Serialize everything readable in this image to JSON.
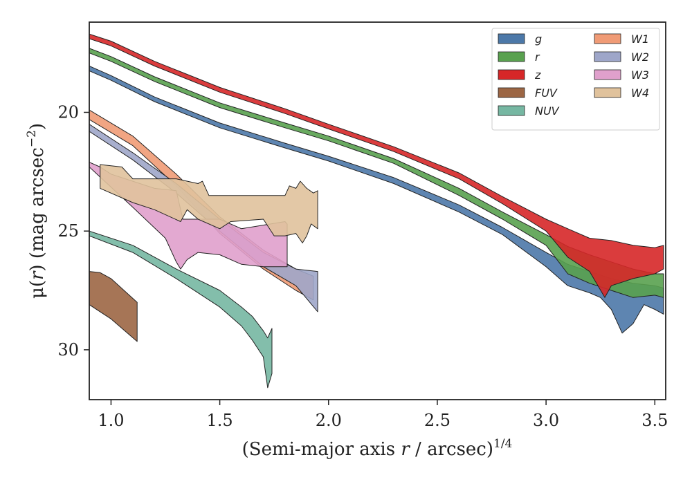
{
  "chart_data": {
    "type": "area",
    "xlabel": {
      "pre": "(Semi-major axis ",
      "var": "r",
      "mid": " / arcsec)",
      "sup": "1/4"
    },
    "ylabel": {
      "pre": "μ(",
      "var": "r",
      "mid": ") (mag arcsec",
      "sup": "−2",
      "post": ")"
    },
    "xlim": [
      0.9,
      3.55
    ],
    "ylim": [
      32.1,
      16.2
    ],
    "y_inverted": true,
    "xticks": [
      1.0,
      1.5,
      2.0,
      2.5,
      3.0,
      3.5
    ],
    "xtick_labels": [
      "1.0",
      "1.5",
      "2.0",
      "2.5",
      "3.0",
      "3.5"
    ],
    "yticks": [
      20,
      25,
      30
    ],
    "ytick_labels": [
      "20",
      "25",
      "30"
    ],
    "grid": false,
    "legend_position": "top-right",
    "legend_columns": 2,
    "series": [
      {
        "name": "g",
        "color": "#4c78a8",
        "upper": [
          [
            0.9,
            18.05
          ],
          [
            1.0,
            18.45
          ],
          [
            1.2,
            19.35
          ],
          [
            1.5,
            20.45
          ],
          [
            1.8,
            21.3
          ],
          [
            2.0,
            21.85
          ],
          [
            2.3,
            22.75
          ],
          [
            2.6,
            23.9
          ],
          [
            2.8,
            24.85
          ],
          [
            3.0,
            25.9
          ],
          [
            3.1,
            26.4
          ],
          [
            3.2,
            26.7
          ],
          [
            3.3,
            27.0
          ],
          [
            3.4,
            27.2
          ],
          [
            3.5,
            27.3
          ],
          [
            3.54,
            27.4
          ]
        ],
        "lower": [
          [
            3.54,
            28.5
          ],
          [
            3.5,
            28.3
          ],
          [
            3.45,
            28.1
          ],
          [
            3.4,
            28.9
          ],
          [
            3.35,
            29.3
          ],
          [
            3.3,
            28.3
          ],
          [
            3.25,
            27.8
          ],
          [
            3.2,
            27.6
          ],
          [
            3.1,
            27.3
          ],
          [
            3.0,
            26.5
          ],
          [
            2.8,
            25.15
          ],
          [
            2.6,
            24.2
          ],
          [
            2.3,
            23.0
          ],
          [
            2.0,
            22.05
          ],
          [
            1.8,
            21.5
          ],
          [
            1.5,
            20.65
          ],
          [
            1.2,
            19.55
          ],
          [
            1.0,
            18.65
          ],
          [
            0.9,
            18.25
          ]
        ]
      },
      {
        "name": "r",
        "color": "#59a14f",
        "upper": [
          [
            0.9,
            17.3
          ],
          [
            1.0,
            17.65
          ],
          [
            1.2,
            18.5
          ],
          [
            1.5,
            19.6
          ],
          [
            1.8,
            20.45
          ],
          [
            2.0,
            21.0
          ],
          [
            2.3,
            21.95
          ],
          [
            2.6,
            23.2
          ],
          [
            2.8,
            24.2
          ],
          [
            3.0,
            25.15
          ],
          [
            3.1,
            25.65
          ],
          [
            3.2,
            26.0
          ],
          [
            3.3,
            26.3
          ],
          [
            3.4,
            26.6
          ],
          [
            3.5,
            26.8
          ],
          [
            3.54,
            26.8
          ]
        ],
        "lower": [
          [
            3.54,
            27.8
          ],
          [
            3.5,
            27.7
          ],
          [
            3.4,
            27.8
          ],
          [
            3.3,
            27.5
          ],
          [
            3.2,
            27.2
          ],
          [
            3.1,
            26.8
          ],
          [
            3.0,
            25.6
          ],
          [
            2.8,
            24.5
          ],
          [
            2.6,
            23.5
          ],
          [
            2.3,
            22.15
          ],
          [
            2.0,
            21.2
          ],
          [
            1.8,
            20.65
          ],
          [
            1.5,
            19.8
          ],
          [
            1.2,
            18.7
          ],
          [
            1.0,
            17.85
          ],
          [
            0.9,
            17.5
          ]
        ]
      },
      {
        "name": "z",
        "color": "#d62728",
        "upper": [
          [
            0.9,
            16.7
          ],
          [
            1.0,
            17.0
          ],
          [
            1.2,
            17.85
          ],
          [
            1.5,
            18.95
          ],
          [
            1.8,
            19.85
          ],
          [
            2.0,
            20.5
          ],
          [
            2.3,
            21.45
          ],
          [
            2.6,
            22.55
          ],
          [
            2.8,
            23.55
          ],
          [
            3.0,
            24.5
          ],
          [
            3.1,
            24.9
          ],
          [
            3.2,
            25.3
          ],
          [
            3.3,
            25.4
          ],
          [
            3.4,
            25.6
          ],
          [
            3.5,
            25.7
          ],
          [
            3.54,
            25.6
          ]
        ],
        "lower": [
          [
            3.54,
            26.6
          ],
          [
            3.5,
            26.8
          ],
          [
            3.4,
            27.0
          ],
          [
            3.3,
            27.3
          ],
          [
            3.27,
            27.8
          ],
          [
            3.2,
            26.7
          ],
          [
            3.1,
            26.1
          ],
          [
            3.0,
            25.0
          ],
          [
            2.8,
            23.85
          ],
          [
            2.6,
            22.8
          ],
          [
            2.3,
            21.65
          ],
          [
            2.0,
            20.7
          ],
          [
            1.8,
            20.05
          ],
          [
            1.5,
            19.15
          ],
          [
            1.2,
            18.05
          ],
          [
            1.0,
            17.2
          ],
          [
            0.9,
            16.9
          ]
        ]
      },
      {
        "name": "FUV",
        "color": "#9c6644",
        "upper": [
          [
            0.9,
            26.7
          ],
          [
            0.95,
            26.75
          ],
          [
            1.0,
            27.0
          ],
          [
            1.12,
            28.0
          ]
        ],
        "lower": [
          [
            1.12,
            29.65
          ],
          [
            1.0,
            28.7
          ],
          [
            0.95,
            28.4
          ],
          [
            0.9,
            28.1
          ]
        ]
      },
      {
        "name": "NUV",
        "color": "#76b7a2",
        "upper": [
          [
            0.9,
            25.0
          ],
          [
            1.1,
            25.6
          ],
          [
            1.3,
            26.6
          ],
          [
            1.5,
            27.5
          ],
          [
            1.6,
            28.2
          ],
          [
            1.65,
            28.6
          ],
          [
            1.7,
            29.2
          ],
          [
            1.72,
            29.5
          ],
          [
            1.74,
            29.1
          ]
        ],
        "lower": [
          [
            1.74,
            31.0
          ],
          [
            1.72,
            31.6
          ],
          [
            1.7,
            30.3
          ],
          [
            1.65,
            29.6
          ],
          [
            1.6,
            29.0
          ],
          [
            1.5,
            28.2
          ],
          [
            1.3,
            27.0
          ],
          [
            1.1,
            25.9
          ],
          [
            0.9,
            25.2
          ]
        ]
      },
      {
        "name": "W1",
        "color": "#f09b76",
        "upper": [
          [
            0.9,
            19.9
          ],
          [
            1.1,
            21.0
          ],
          [
            1.3,
            22.6
          ],
          [
            1.5,
            24.4
          ],
          [
            1.7,
            25.8
          ],
          [
            1.85,
            26.6
          ],
          [
            1.93,
            26.9
          ]
        ],
        "lower": [
          [
            1.93,
            27.9
          ],
          [
            1.85,
            27.5
          ],
          [
            1.7,
            26.6
          ],
          [
            1.5,
            25.1
          ],
          [
            1.3,
            23.1
          ],
          [
            1.1,
            21.4
          ],
          [
            0.9,
            20.3
          ]
        ]
      },
      {
        "name": "W2",
        "color": "#9ea6c9",
        "upper": [
          [
            0.9,
            20.5
          ],
          [
            1.1,
            21.7
          ],
          [
            1.3,
            23.0
          ],
          [
            1.5,
            24.5
          ],
          [
            1.7,
            25.9
          ],
          [
            1.85,
            26.6
          ],
          [
            1.95,
            26.7
          ]
        ],
        "lower": [
          [
            1.95,
            28.4
          ],
          [
            1.85,
            27.3
          ],
          [
            1.7,
            26.5
          ],
          [
            1.5,
            25.0
          ],
          [
            1.3,
            23.4
          ],
          [
            1.1,
            22.0
          ],
          [
            0.9,
            20.8
          ]
        ]
      },
      {
        "name": "W3",
        "color": "#e0a0cc",
        "upper": [
          [
            0.9,
            22.1
          ],
          [
            0.95,
            22.3
          ],
          [
            1.0,
            22.6
          ],
          [
            1.2,
            23.2
          ],
          [
            1.3,
            23.3
          ],
          [
            1.33,
            24.5
          ],
          [
            1.5,
            24.5
          ],
          [
            1.6,
            24.9
          ],
          [
            1.8,
            24.6
          ],
          [
            1.81,
            24.7
          ]
        ],
        "lower": [
          [
            1.81,
            26.5
          ],
          [
            1.7,
            26.5
          ],
          [
            1.6,
            26.4
          ],
          [
            1.5,
            26.0
          ],
          [
            1.4,
            25.9
          ],
          [
            1.35,
            26.2
          ],
          [
            1.32,
            26.6
          ],
          [
            1.3,
            26.3
          ],
          [
            1.25,
            25.3
          ],
          [
            1.1,
            24.0
          ],
          [
            0.9,
            22.3
          ]
        ]
      },
      {
        "name": "W4",
        "color": "#e0c29c",
        "upper": [
          [
            0.95,
            22.2
          ],
          [
            1.05,
            22.3
          ],
          [
            1.1,
            22.8
          ],
          [
            1.3,
            22.8
          ],
          [
            1.4,
            23.0
          ],
          [
            1.42,
            22.9
          ],
          [
            1.45,
            23.5
          ],
          [
            1.6,
            23.5
          ],
          [
            1.8,
            23.5
          ],
          [
            1.82,
            23.1
          ],
          [
            1.85,
            23.2
          ],
          [
            1.87,
            22.9
          ],
          [
            1.9,
            23.2
          ],
          [
            1.93,
            23.4
          ],
          [
            1.95,
            23.3
          ]
        ],
        "lower": [
          [
            1.95,
            24.9
          ],
          [
            1.92,
            24.7
          ],
          [
            1.9,
            25.2
          ],
          [
            1.88,
            25.5
          ],
          [
            1.85,
            25.1
          ],
          [
            1.8,
            25.2
          ],
          [
            1.75,
            25.2
          ],
          [
            1.7,
            24.5
          ],
          [
            1.55,
            24.6
          ],
          [
            1.5,
            24.9
          ],
          [
            1.4,
            24.5
          ],
          [
            1.35,
            24.1
          ],
          [
            1.32,
            24.6
          ],
          [
            1.2,
            24.1
          ],
          [
            1.1,
            23.8
          ],
          [
            0.95,
            23.2
          ]
        ]
      }
    ]
  }
}
